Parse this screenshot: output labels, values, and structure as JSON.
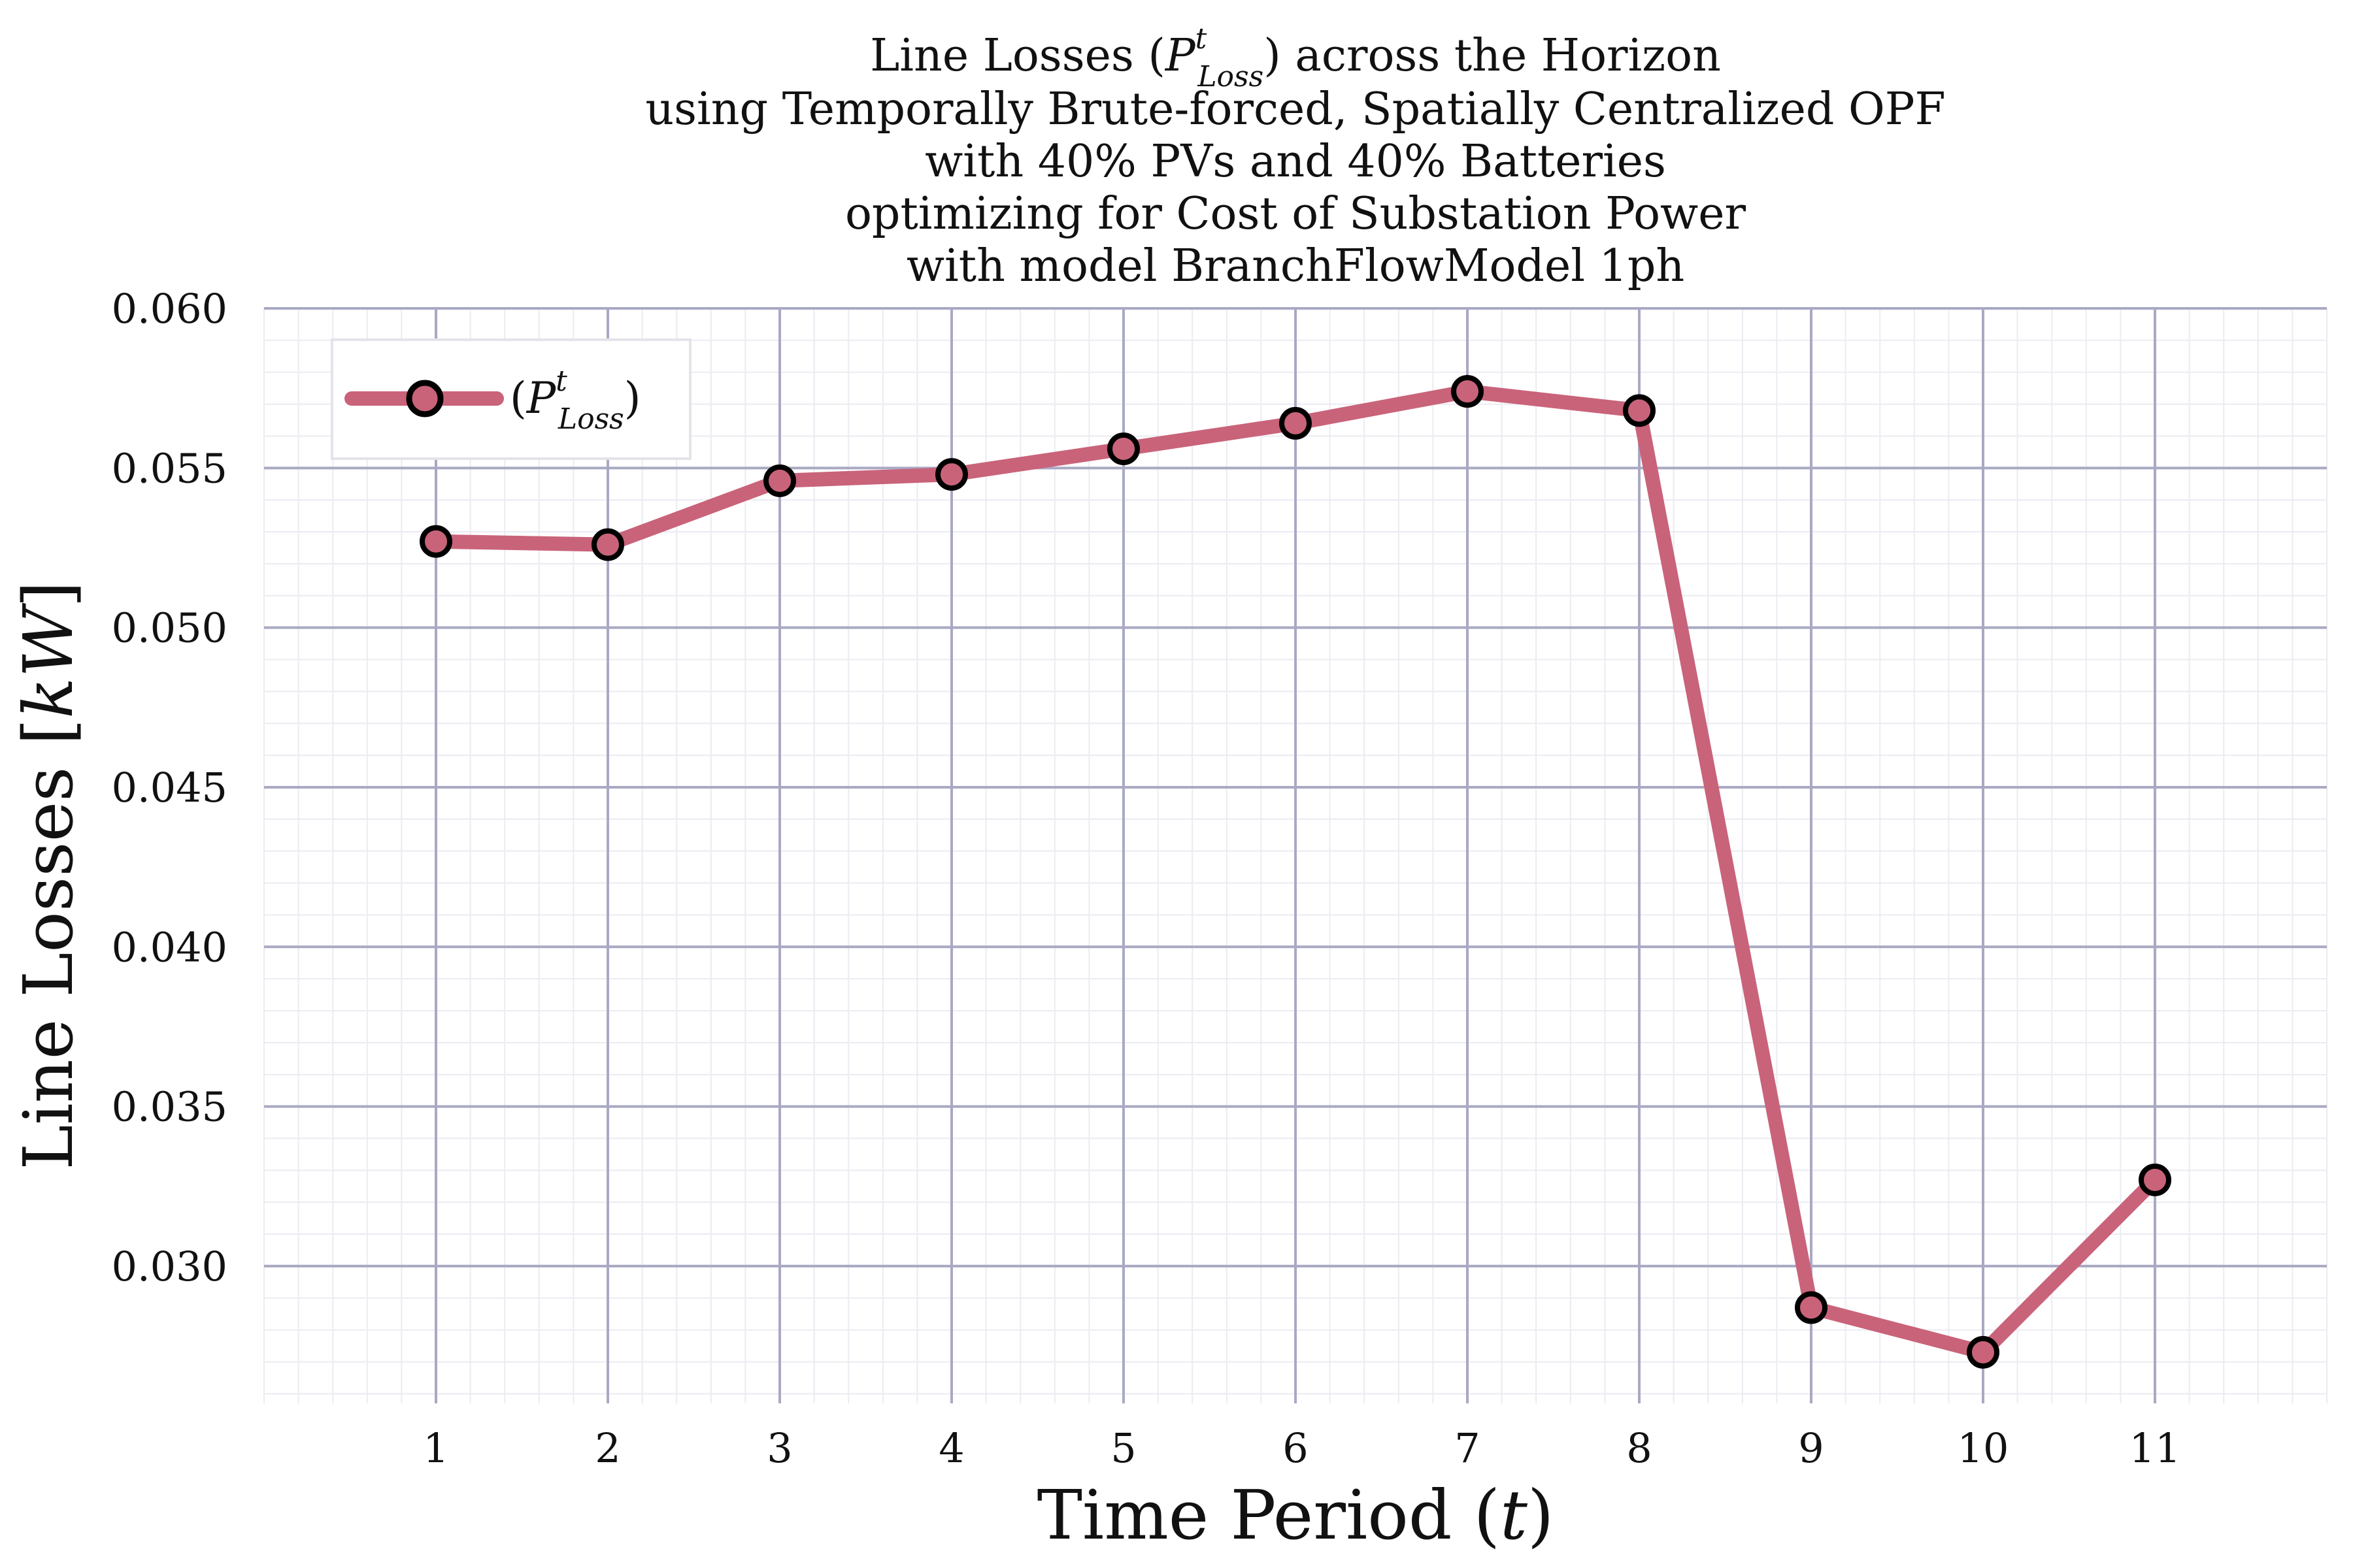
{
  "chart_data": {
    "type": "line",
    "title": [
      "Line Losses (P^t_Loss) across the Horizon",
      "using Temporally Brute-forced, Spatially Centralized OPF",
      "with 40% PVs and 40% Batteries",
      "optimizing for Cost of Substation Power",
      "with model BranchFlowModel 1ph"
    ],
    "xlabel": "Time Period (t)",
    "ylabel": "Line Losses [kW]",
    "x": [
      1,
      2,
      3,
      4,
      5,
      6,
      7,
      8,
      9,
      10,
      11
    ],
    "x_ticks": [
      "1",
      "2",
      "3",
      "4",
      "5",
      "6",
      "7",
      "8",
      "9",
      "10",
      "11"
    ],
    "xlim": [
      0,
      12
    ],
    "y_ticks": [
      "0.030",
      "0.035",
      "0.040",
      "0.045",
      "0.050",
      "0.055",
      "0.060"
    ],
    "ylim": [
      0.0257,
      0.06
    ],
    "grid": true,
    "legend_position": "top-left",
    "series": [
      {
        "name": "(P^t_Loss)",
        "values": [
          0.0527,
          0.0526,
          0.0546,
          0.0548,
          0.0556,
          0.0564,
          0.0574,
          0.0568,
          0.0287,
          0.0273,
          0.0327
        ],
        "line_color": "#c9637a",
        "marker_fill": "#c9637a",
        "marker_edge": "#000000"
      }
    ],
    "grid_major_color": "#a9a9c3",
    "grid_minor_color": "#ebebf2"
  }
}
